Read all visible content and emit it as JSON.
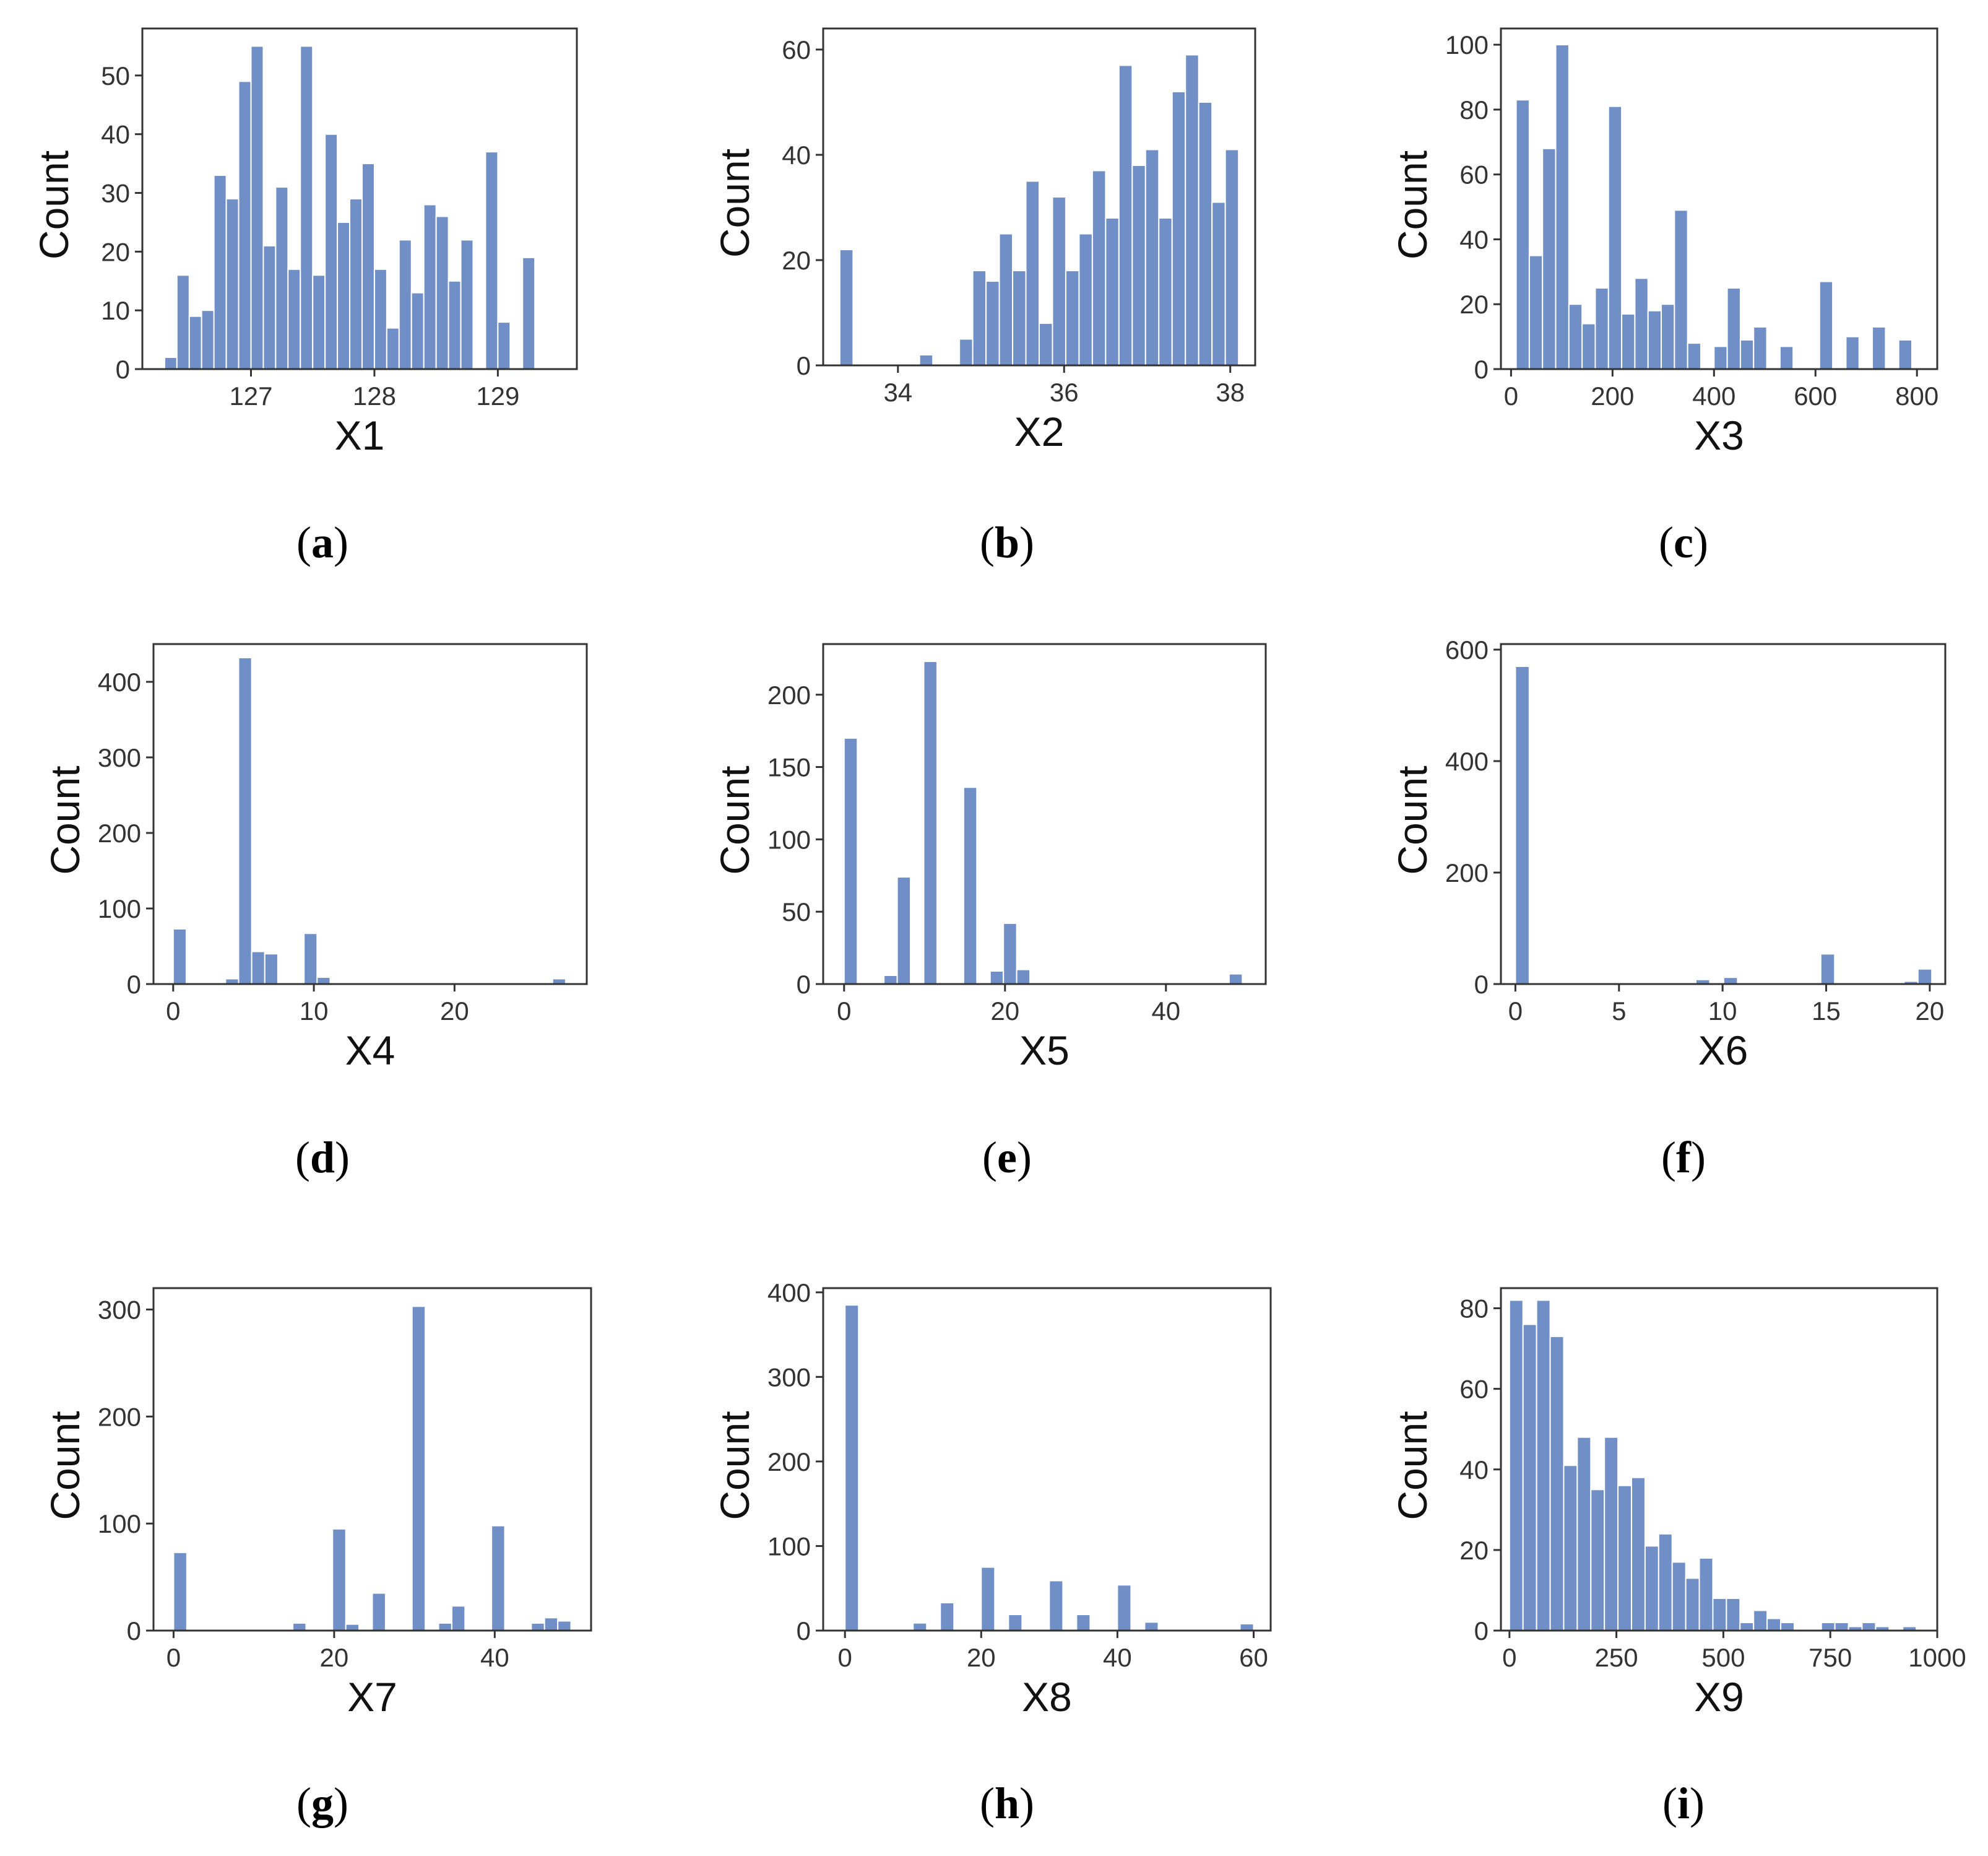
{
  "figure": {
    "bar_color": "#6f8fc6",
    "bar_edge_color": "#ffffff",
    "frame_color": "#333333"
  },
  "chart_data": [
    {
      "type": "bar",
      "panel": "a",
      "title": "",
      "xlabel": "X1",
      "ylabel": "Count",
      "xlim": [
        126.12,
        129.64
      ],
      "ylim": [
        0,
        58
      ],
      "xticks": [
        127,
        128,
        129
      ],
      "yticks": [
        0,
        10,
        20,
        30,
        40,
        50
      ],
      "bin_start": 126.3,
      "bin_width": 0.1,
      "values": [
        2,
        16,
        9,
        10,
        33,
        29,
        49,
        55,
        21,
        31,
        17,
        55,
        16,
        40,
        25,
        29,
        35,
        17,
        7,
        22,
        13,
        28,
        26,
        15,
        22,
        0,
        37,
        8,
        0,
        19
      ]
    },
    {
      "type": "bar",
      "panel": "b",
      "title": "",
      "xlabel": "X2",
      "ylabel": "Count",
      "xlim": [
        33.1,
        38.3
      ],
      "ylim": [
        0,
        64
      ],
      "xticks": [
        34,
        36,
        38
      ],
      "yticks": [
        0,
        20,
        40,
        60
      ],
      "bin_start": 33.3,
      "bin_width": 0.16,
      "values": [
        22,
        0,
        0,
        0,
        0,
        0,
        2,
        0,
        0,
        5,
        18,
        16,
        25,
        18,
        35,
        8,
        32,
        18,
        25,
        37,
        28,
        57,
        38,
        41,
        28,
        52,
        59,
        50,
        31,
        41
      ]
    },
    {
      "type": "bar",
      "panel": "c",
      "title": "",
      "xlabel": "X3",
      "ylabel": "Count",
      "xlim": [
        -20,
        840
      ],
      "ylim": [
        0,
        105
      ],
      "xticks": [
        0,
        200,
        400,
        600,
        800
      ],
      "yticks": [
        0,
        20,
        40,
        60,
        80,
        100
      ],
      "bin_start": 10,
      "bin_width": 26,
      "values": [
        83,
        35,
        68,
        100,
        20,
        14,
        25,
        81,
        17,
        28,
        18,
        20,
        49,
        8,
        0,
        7,
        25,
        9,
        13,
        0,
        7,
        0,
        0,
        27,
        0,
        10,
        0,
        13,
        0,
        9
      ]
    },
    {
      "type": "bar",
      "panel": "d",
      "title": "",
      "xlabel": "X4",
      "ylabel": "Count",
      "xlim": [
        -1.4,
        29.4
      ],
      "ylim": [
        0,
        450
      ],
      "xticks": [
        0,
        10,
        20
      ],
      "yticks": [
        0,
        100,
        200,
        300,
        400
      ],
      "bin_start": 0,
      "bin_width": 0.93,
      "values": [
        73,
        0,
        0,
        0,
        7,
        432,
        43,
        40,
        0,
        0,
        67,
        9,
        0,
        0,
        0,
        0,
        0,
        0,
        0,
        0,
        0,
        0,
        0,
        0,
        0,
        0,
        0,
        0,
        0,
        7
      ]
    },
    {
      "type": "bar",
      "panel": "e",
      "title": "",
      "xlabel": "X5",
      "ylabel": "Count",
      "xlim": [
        -2.6,
        52.4
      ],
      "ylim": [
        0,
        235
      ],
      "xticks": [
        0,
        20,
        40
      ],
      "yticks": [
        0,
        50,
        100,
        150,
        200
      ],
      "bin_start": 0,
      "bin_width": 1.65,
      "values": [
        170,
        0,
        0,
        6,
        74,
        0,
        223,
        0,
        0,
        136,
        0,
        9,
        42,
        10,
        0,
        0,
        0,
        0,
        0,
        0,
        0,
        0,
        0,
        0,
        0,
        0,
        0,
        0,
        0,
        7
      ]
    },
    {
      "type": "bar",
      "panel": "f",
      "title": "",
      "xlabel": "X6",
      "ylabel": "Count",
      "xlim": [
        -0.7,
        20.75
      ],
      "ylim": [
        0,
        610
      ],
      "xticks": [
        0,
        5,
        10,
        15,
        20
      ],
      "yticks": [
        0,
        200,
        400,
        600
      ],
      "bin_start": 0,
      "bin_width": 0.67,
      "values": [
        570,
        0,
        0,
        0,
        0,
        0,
        0,
        0,
        0,
        0,
        0,
        0,
        0,
        8,
        0,
        12,
        0,
        0,
        0,
        0,
        0,
        0,
        54,
        0,
        0,
        0,
        0,
        0,
        5,
        27
      ]
    },
    {
      "type": "bar",
      "panel": "g",
      "title": "",
      "xlabel": "X7",
      "ylabel": "Count",
      "xlim": [
        -2.5,
        52
      ],
      "ylim": [
        0,
        320
      ],
      "xticks": [
        0,
        20,
        40
      ],
      "yticks": [
        0,
        100,
        200,
        300
      ],
      "bin_start": 0,
      "bin_width": 1.65,
      "values": [
        73,
        0,
        0,
        0,
        0,
        0,
        0,
        0,
        0,
        7,
        0,
        0,
        95,
        6,
        0,
        35,
        0,
        0,
        303,
        0,
        7,
        23,
        0,
        0,
        98,
        0,
        0,
        7,
        12,
        9
      ]
    },
    {
      "type": "bar",
      "panel": "h",
      "title": "",
      "xlabel": "X8",
      "ylabel": "Count",
      "xlim": [
        -3.2,
        62.5
      ],
      "ylim": [
        0,
        405
      ],
      "xticks": [
        0,
        20,
        40,
        60
      ],
      "yticks": [
        0,
        100,
        200,
        300,
        400
      ],
      "bin_start": 0,
      "bin_width": 2.0,
      "values": [
        385,
        0,
        0,
        0,
        0,
        9,
        0,
        33,
        0,
        0,
        75,
        0,
        19,
        0,
        0,
        59,
        0,
        19,
        0,
        0,
        54,
        0,
        10,
        0,
        0,
        0,
        0,
        0,
        0,
        8
      ]
    },
    {
      "type": "bar",
      "panel": "i",
      "title": "",
      "xlabel": "X9",
      "ylabel": "Count",
      "xlim": [
        -20,
        1000
      ],
      "ylim": [
        0,
        85
      ],
      "xticks": [
        0,
        250,
        500,
        750,
        1000
      ],
      "yticks": [
        0,
        20,
        40,
        60,
        80
      ],
      "bin_start": 0,
      "bin_width": 31.7,
      "values": [
        82,
        76,
        82,
        73,
        41,
        48,
        35,
        48,
        36,
        38,
        21,
        24,
        17,
        13,
        18,
        8,
        8,
        2,
        5,
        3,
        2,
        0,
        0,
        2,
        2,
        1,
        2,
        1,
        0,
        1
      ]
    }
  ],
  "panels": [
    {
      "label_open": "(",
      "letter": "a",
      "label_close": ")"
    },
    {
      "label_open": "(",
      "letter": "b",
      "label_close": ")"
    },
    {
      "label_open": "(",
      "letter": "c",
      "label_close": ")"
    },
    {
      "label_open": "(",
      "letter": "d",
      "label_close": ")"
    },
    {
      "label_open": "(",
      "letter": "e",
      "label_close": ")"
    },
    {
      "label_open": "(",
      "letter": "f",
      "label_close": ")"
    },
    {
      "label_open": "(",
      "letter": "g",
      "label_close": ")"
    },
    {
      "label_open": "(",
      "letter": "h",
      "label_close": ")"
    },
    {
      "label_open": "(",
      "letter": "i",
      "label_close": ")"
    }
  ]
}
